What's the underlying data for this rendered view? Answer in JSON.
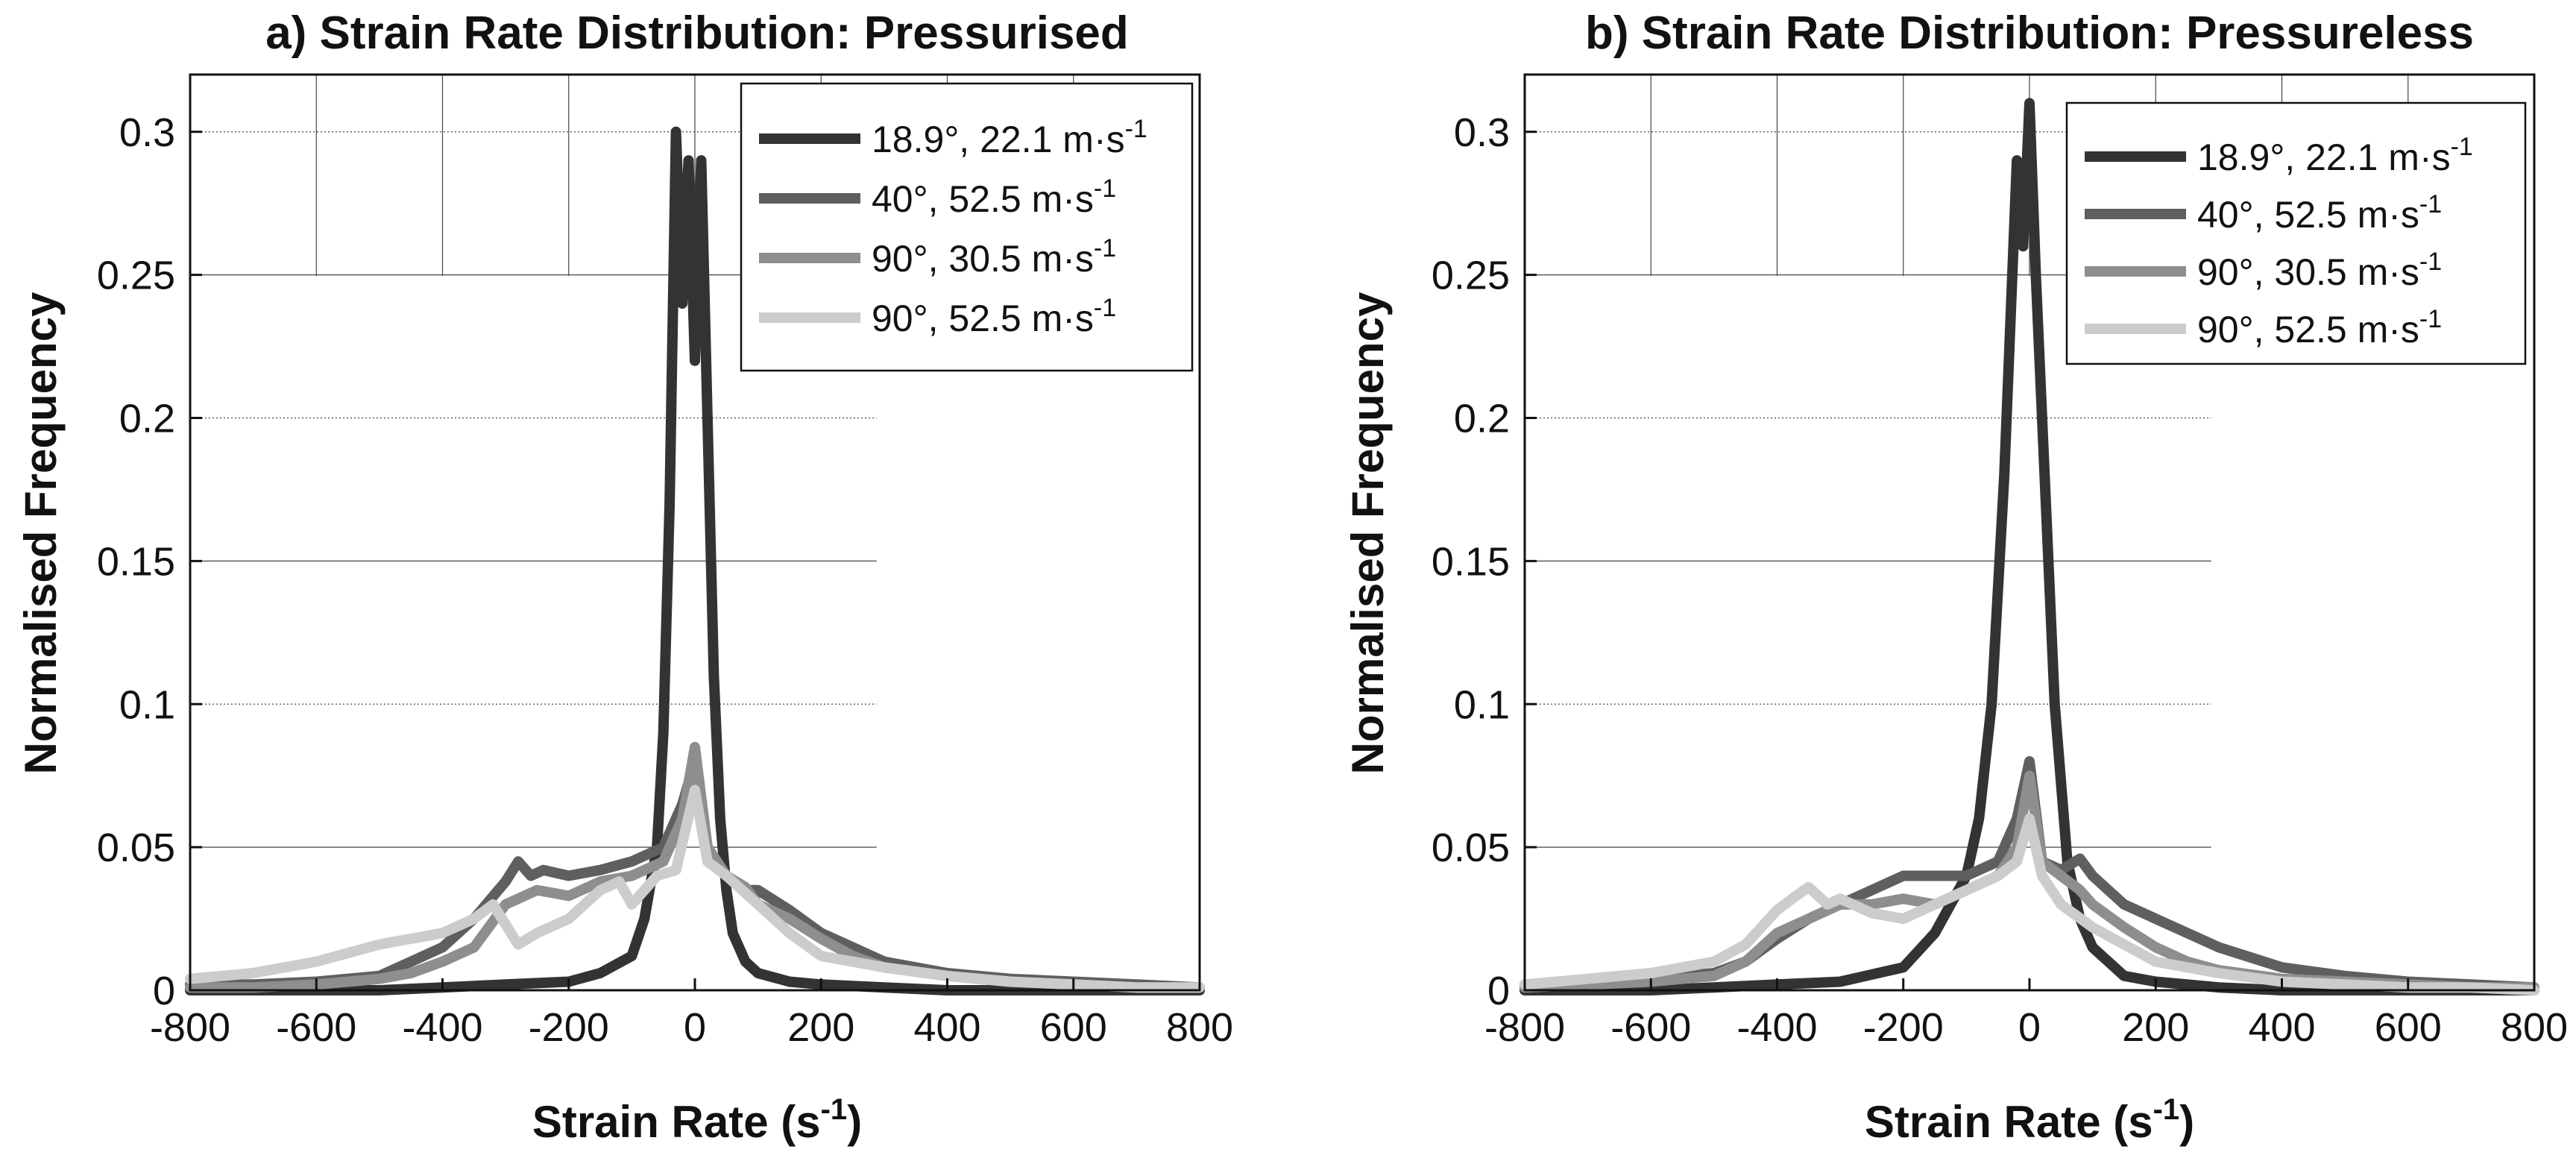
{
  "chart_data": [
    {
      "type": "line",
      "title": "a) Strain Rate Distribution: Pressurised",
      "xlabel_main": "Strain Rate (s",
      "xlabel_sup": "-1",
      "xlabel_end": ")",
      "ylabel": "Normalised Frequency",
      "xlim": [
        -800,
        800
      ],
      "ylim": [
        0,
        0.32
      ],
      "xticks": [
        -800,
        -600,
        -400,
        -200,
        0,
        200,
        400,
        600,
        800
      ],
      "yticks": [
        0,
        0.05,
        0.1,
        0.15,
        0.2,
        0.25,
        0.3
      ],
      "ytick_labels": [
        "0",
        "0.05",
        "0.1",
        "0.15",
        "0.2",
        "0.25",
        "0.3"
      ],
      "legend_position": "top-right",
      "series": [
        {
          "name": "18.9°, 22.1 m·s",
          "unit_sup": "-1",
          "color": "#333333",
          "x": [
            -800,
            -700,
            -600,
            -500,
            -400,
            -300,
            -200,
            -150,
            -100,
            -80,
            -60,
            -50,
            -40,
            -30,
            -20,
            -10,
            0,
            10,
            20,
            30,
            40,
            50,
            60,
            80,
            100,
            150,
            200,
            300,
            400,
            500,
            600,
            700,
            800
          ],
          "y": [
            0,
            0,
            0,
            0,
            0.001,
            0.002,
            0.003,
            0.006,
            0.012,
            0.025,
            0.05,
            0.09,
            0.17,
            0.3,
            0.24,
            0.29,
            0.22,
            0.29,
            0.2,
            0.11,
            0.06,
            0.035,
            0.02,
            0.01,
            0.006,
            0.003,
            0.002,
            0.001,
            0,
            0,
            0,
            0,
            0
          ]
        },
        {
          "name": "40°, 52.5 m·s",
          "unit_sup": "-1",
          "color": "#5f5f5f",
          "x": [
            -800,
            -700,
            -600,
            -500,
            -450,
            -400,
            -350,
            -300,
            -280,
            -260,
            -240,
            -200,
            -150,
            -100,
            -50,
            -20,
            0,
            20,
            50,
            80,
            100,
            150,
            200,
            250,
            300,
            400,
            500,
            600,
            700,
            800
          ],
          "y": [
            0.002,
            0.002,
            0.003,
            0.005,
            0.01,
            0.015,
            0.025,
            0.038,
            0.045,
            0.04,
            0.042,
            0.04,
            0.042,
            0.045,
            0.05,
            0.065,
            0.08,
            0.05,
            0.04,
            0.035,
            0.035,
            0.028,
            0.02,
            0.015,
            0.01,
            0.006,
            0.004,
            0.003,
            0.002,
            0.001
          ]
        },
        {
          "name": "90°, 30.5 m·s",
          "unit_sup": "-1",
          "color": "#8e8e8e",
          "x": [
            -800,
            -700,
            -600,
            -500,
            -450,
            -400,
            -350,
            -300,
            -250,
            -200,
            -150,
            -100,
            -50,
            -20,
            0,
            20,
            50,
            80,
            100,
            150,
            200,
            250,
            300,
            400,
            500,
            600,
            700,
            800
          ],
          "y": [
            0.001,
            0.001,
            0.002,
            0.004,
            0.006,
            0.01,
            0.015,
            0.03,
            0.035,
            0.033,
            0.038,
            0.04,
            0.045,
            0.06,
            0.085,
            0.05,
            0.04,
            0.036,
            0.03,
            0.025,
            0.018,
            0.012,
            0.008,
            0.005,
            0.003,
            0.002,
            0.001,
            0.001
          ]
        },
        {
          "name": "90°, 52.5 m·s",
          "unit_sup": "-1",
          "color": "#cccccc",
          "x": [
            -800,
            -700,
            -600,
            -500,
            -450,
            -400,
            -350,
            -320,
            -280,
            -250,
            -200,
            -150,
            -120,
            -100,
            -60,
            -30,
            0,
            20,
            50,
            100,
            150,
            200,
            300,
            400,
            500,
            600,
            700,
            800
          ],
          "y": [
            0.004,
            0.006,
            0.01,
            0.016,
            0.018,
            0.02,
            0.025,
            0.03,
            0.016,
            0.02,
            0.025,
            0.035,
            0.038,
            0.03,
            0.04,
            0.042,
            0.07,
            0.045,
            0.04,
            0.03,
            0.02,
            0.012,
            0.008,
            0.005,
            0.003,
            0.002,
            0.001,
            0.001
          ]
        }
      ]
    },
    {
      "type": "line",
      "title": "b) Strain Rate Distribution: Pressureless",
      "xlabel_main": "Strain Rate (s",
      "xlabel_sup": "-1",
      "xlabel_end": ")",
      "ylabel": "Normalised Frequency",
      "xlim": [
        -800,
        800
      ],
      "ylim": [
        0,
        0.32
      ],
      "xticks": [
        -800,
        -600,
        -400,
        -200,
        0,
        200,
        400,
        600,
        800
      ],
      "yticks": [
        0,
        0.05,
        0.1,
        0.15,
        0.2,
        0.25,
        0.3
      ],
      "ytick_labels": [
        "0",
        "0.05",
        "0.1",
        "0.15",
        "0.2",
        "0.25",
        "0.3"
      ],
      "legend_position": "top-right",
      "series": [
        {
          "name": "18.9°, 22.1 m·s",
          "unit_sup": "-1",
          "color": "#333333",
          "x": [
            -800,
            -700,
            -600,
            -500,
            -400,
            -300,
            -200,
            -150,
            -100,
            -80,
            -60,
            -40,
            -20,
            -10,
            0,
            10,
            20,
            40,
            60,
            80,
            100,
            150,
            200,
            300,
            400,
            500,
            600,
            700,
            800
          ],
          "y": [
            0,
            0,
            0,
            0.001,
            0.002,
            0.003,
            0.008,
            0.02,
            0.04,
            0.06,
            0.1,
            0.18,
            0.29,
            0.26,
            0.31,
            0.25,
            0.2,
            0.1,
            0.045,
            0.025,
            0.015,
            0.005,
            0.003,
            0.001,
            0,
            0,
            0,
            0,
            0
          ]
        },
        {
          "name": "40°, 52.5 m·s",
          "unit_sup": "-1",
          "color": "#5f5f5f",
          "x": [
            -800,
            -700,
            -600,
            -500,
            -450,
            -400,
            -350,
            -300,
            -250,
            -200,
            -150,
            -100,
            -50,
            -20,
            0,
            20,
            50,
            80,
            100,
            150,
            200,
            250,
            300,
            400,
            500,
            600,
            700,
            800
          ],
          "y": [
            0.002,
            0.003,
            0.004,
            0.006,
            0.01,
            0.018,
            0.025,
            0.03,
            0.035,
            0.04,
            0.04,
            0.04,
            0.045,
            0.06,
            0.08,
            0.045,
            0.042,
            0.046,
            0.04,
            0.03,
            0.025,
            0.02,
            0.015,
            0.008,
            0.005,
            0.003,
            0.002,
            0.001
          ]
        },
        {
          "name": "90°, 30.5 m·s",
          "unit_sup": "-1",
          "color": "#8e8e8e",
          "x": [
            -800,
            -700,
            -600,
            -500,
            -450,
            -400,
            -350,
            -300,
            -250,
            -200,
            -150,
            -100,
            -50,
            -20,
            0,
            20,
            50,
            80,
            100,
            150,
            200,
            250,
            300,
            400,
            500,
            600,
            700,
            800
          ],
          "y": [
            0.001,
            0.002,
            0.003,
            0.005,
            0.01,
            0.02,
            0.025,
            0.03,
            0.03,
            0.032,
            0.03,
            0.035,
            0.04,
            0.05,
            0.075,
            0.045,
            0.04,
            0.035,
            0.03,
            0.022,
            0.015,
            0.01,
            0.007,
            0.004,
            0.003,
            0.002,
            0.001,
            0.001
          ]
        },
        {
          "name": "90°, 52.5 m·s",
          "unit_sup": "-1",
          "color": "#cccccc",
          "x": [
            -800,
            -700,
            -600,
            -500,
            -450,
            -400,
            -370,
            -350,
            -320,
            -300,
            -250,
            -200,
            -150,
            -100,
            -50,
            -20,
            0,
            20,
            50,
            100,
            150,
            200,
            300,
            400,
            500,
            600,
            700,
            800
          ],
          "y": [
            0.002,
            0.004,
            0.006,
            0.01,
            0.016,
            0.028,
            0.033,
            0.036,
            0.03,
            0.032,
            0.027,
            0.025,
            0.03,
            0.035,
            0.04,
            0.045,
            0.06,
            0.04,
            0.03,
            0.022,
            0.016,
            0.01,
            0.006,
            0.003,
            0.002,
            0.001,
            0.001,
            0
          ]
        }
      ]
    }
  ]
}
